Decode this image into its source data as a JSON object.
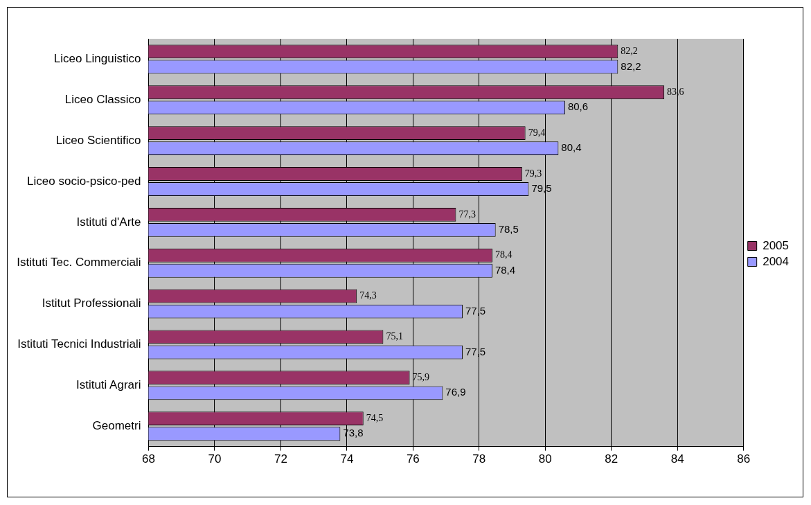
{
  "chart_data": {
    "type": "bar",
    "orientation": "horizontal",
    "categories": [
      "Liceo Linguistico",
      "Liceo Classico",
      "Liceo Scientifico",
      "Liceo socio-psico-ped",
      "Istituti d'Arte",
      "Istituti Tec. Commerciali",
      "Istitut Professionali",
      "Istituti Tecnici Industriali",
      "Istituti Agrari",
      "Geometri"
    ],
    "series": [
      {
        "name": "2005",
        "color": "#993366",
        "values": [
          82.2,
          83.6,
          79.4,
          79.3,
          77.3,
          78.4,
          74.3,
          75.1,
          75.9,
          74.5
        ],
        "value_labels": [
          "82,2",
          "83,6",
          "79,4",
          "79,3",
          "77,3",
          "78,4",
          "74,3",
          "75,1",
          "75,9",
          "74,5"
        ]
      },
      {
        "name": "2004",
        "color": "#9999ff",
        "values": [
          82.2,
          80.6,
          80.4,
          79.5,
          78.5,
          78.4,
          77.5,
          77.5,
          76.9,
          73.8
        ],
        "value_labels": [
          "82,2",
          "80,6",
          "80,4",
          "79,5",
          "78,5",
          "78,4",
          "77,5",
          "77,5",
          "76,9",
          "73,8"
        ]
      }
    ],
    "xlim": [
      68,
      86
    ],
    "xticks": [
      68,
      70,
      72,
      74,
      76,
      78,
      80,
      82,
      84,
      86
    ],
    "grid": "x",
    "legend": "right"
  }
}
